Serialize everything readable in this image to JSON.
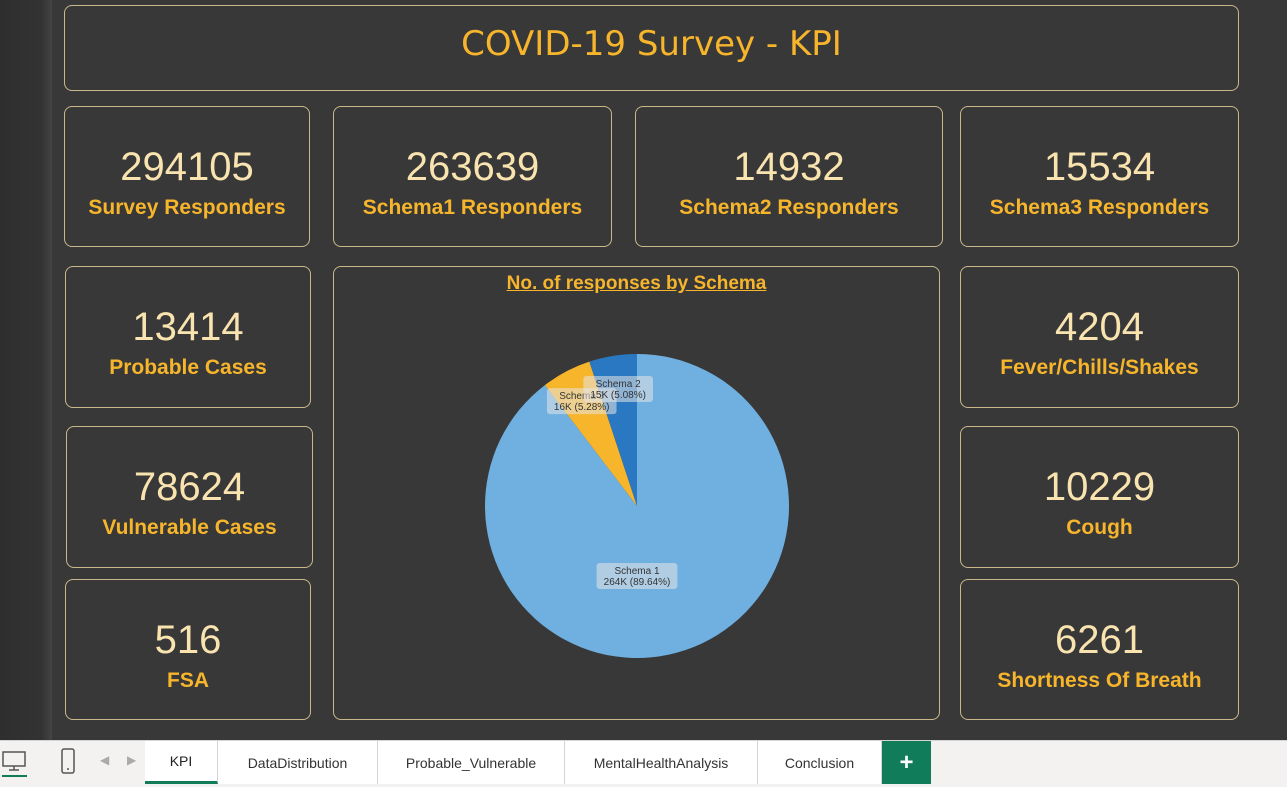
{
  "header": {
    "title": "COVID-19 Survey - KPI"
  },
  "kpis": {
    "survey_responders": {
      "value": "294105",
      "label": "Survey Responders"
    },
    "schema1_responders": {
      "value": "263639",
      "label": "Schema1 Responders"
    },
    "schema2_responders": {
      "value": "14932",
      "label": "Schema2 Responders"
    },
    "schema3_responders": {
      "value": "15534",
      "label": "Schema3 Responders"
    },
    "probable_cases": {
      "value": "13414",
      "label": "Probable Cases"
    },
    "vulnerable_cases": {
      "value": "78624",
      "label": "Vulnerable Cases"
    },
    "fsa": {
      "value": "516",
      "label": "FSA"
    },
    "fever": {
      "value": "4204",
      "label": "Fever/Chills/Shakes"
    },
    "cough": {
      "value": "10229",
      "label": "Cough"
    },
    "breath": {
      "value": "6261",
      "label": "Shortness Of Breath"
    }
  },
  "chart_data": {
    "type": "pie",
    "title": "No. of responses by Schema",
    "categories": [
      "Schema 1",
      "Schema 3",
      "Schema 2"
    ],
    "values": [
      263639,
      15534,
      14932
    ],
    "percent_labels": [
      "89.64%",
      "5.28%",
      "5.08%"
    ],
    "value_labels": [
      "264K",
      "16K",
      "15K"
    ],
    "colors": [
      "#6fb0e0",
      "#f7b52c",
      "#2b78c2"
    ]
  },
  "colors": {
    "accent": "#f7b52c",
    "value_text": "#f9e4b0",
    "background": "#383838",
    "border": "#c9b98a",
    "active_tab": "#107c5a"
  },
  "taskbar": {
    "icons": [
      "desktop-icon",
      "mobile-icon"
    ],
    "tabs": [
      "KPI",
      "DataDistribution",
      "Probable_Vulnerable",
      "MentalHealthAnalysis",
      "Conclusion"
    ],
    "active_tab": "KPI",
    "add_label": "+"
  }
}
